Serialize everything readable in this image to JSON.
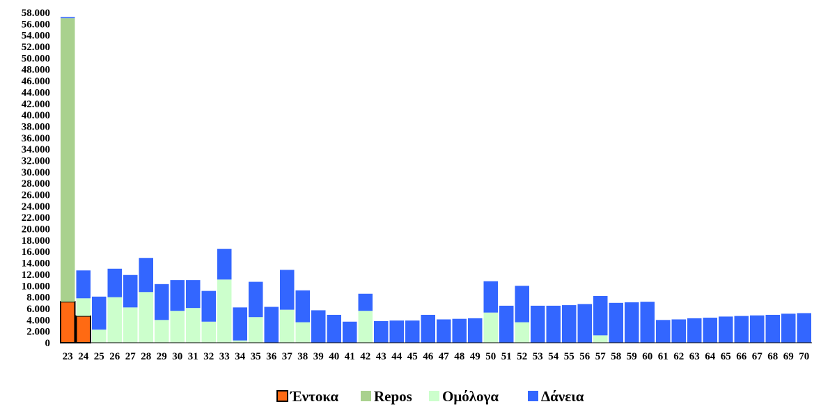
{
  "chart_data": {
    "type": "bar",
    "stacked": true,
    "categories": [
      "23",
      "24",
      "25",
      "26",
      "27",
      "28",
      "29",
      "30",
      "31",
      "32",
      "33",
      "34",
      "35",
      "36",
      "37",
      "38",
      "39",
      "40",
      "41",
      "42",
      "43",
      "44",
      "45",
      "46",
      "47",
      "48",
      "49",
      "50",
      "51",
      "52",
      "53",
      "54",
      "55",
      "56",
      "57",
      "58",
      "59",
      "60",
      "61",
      "62",
      "63",
      "64",
      "65",
      "66",
      "67",
      "68",
      "69",
      "70"
    ],
    "series": [
      {
        "name": "Έντοκα",
        "color": "#ff6a13",
        "values": [
          7200,
          4700,
          0,
          0,
          0,
          0,
          0,
          0,
          0,
          0,
          0,
          0,
          0,
          0,
          0,
          0,
          0,
          0,
          0,
          0,
          0,
          0,
          0,
          0,
          0,
          0,
          0,
          0,
          0,
          0,
          0,
          0,
          0,
          0,
          0,
          0,
          0,
          0,
          0,
          0,
          0,
          0,
          0,
          0,
          0,
          0,
          0,
          0
        ]
      },
      {
        "name": "Repos",
        "color": "#a9d18e",
        "values": [
          49800,
          0,
          0,
          0,
          0,
          0,
          0,
          0,
          0,
          0,
          0,
          0,
          0,
          0,
          0,
          0,
          0,
          0,
          0,
          0,
          0,
          0,
          0,
          0,
          0,
          0,
          0,
          0,
          0,
          0,
          0,
          0,
          0,
          0,
          0,
          0,
          0,
          0,
          0,
          0,
          0,
          0,
          0,
          0,
          0,
          0,
          0,
          0
        ]
      },
      {
        "name": "Ομόλογα",
        "color": "#ccffcc",
        "values": [
          0,
          3100,
          2300,
          8000,
          6200,
          8900,
          4000,
          5600,
          6100,
          3700,
          11100,
          400,
          4500,
          0,
          5800,
          3600,
          0,
          0,
          0,
          5600,
          0,
          0,
          0,
          0,
          0,
          0,
          0,
          5300,
          0,
          3600,
          0,
          0,
          0,
          0,
          1300,
          0,
          0,
          0,
          0,
          0,
          0,
          0,
          0,
          0,
          0,
          0,
          0,
          0
        ]
      },
      {
        "name": "Δάνεια",
        "color": "#3366ff",
        "values": [
          200,
          4900,
          5800,
          5000,
          5700,
          6000,
          6300,
          5400,
          4900,
          5400,
          5400,
          5800,
          6200,
          6300,
          7000,
          5600,
          5700,
          4900,
          3700,
          3000,
          3800,
          3900,
          3900,
          4900,
          4100,
          4200,
          4300,
          5500,
          6500,
          6400,
          6500,
          6500,
          6600,
          6800,
          6900,
          7000,
          7100,
          7200,
          4000,
          4100,
          4300,
          4400,
          4600,
          4700,
          4800,
          4900,
          5100,
          5200
        ]
      }
    ],
    "ylim": [
      0,
      58000
    ],
    "yticks": [
      "0",
      "2.000",
      "4.000",
      "6.000",
      "8.000",
      "10.000",
      "12.000",
      "14.000",
      "16.000",
      "18.000",
      "20.000",
      "22.000",
      "24.000",
      "26.000",
      "28.000",
      "30.000",
      "32.000",
      "34.000",
      "36.000",
      "38.000",
      "40.000",
      "42.000",
      "44.000",
      "46.000",
      "48.000",
      "50.000",
      "52.000",
      "54.000",
      "56.000",
      "58.000"
    ],
    "legend_position": "bottom",
    "grid": false
  }
}
